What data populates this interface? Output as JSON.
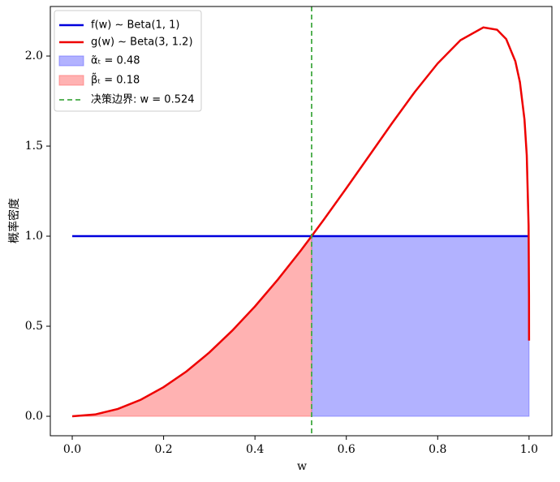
{
  "chart_data": {
    "type": "line",
    "xlabel": "w",
    "ylabel": "概率密度",
    "xlim": [
      -0.048,
      1.05
    ],
    "ylim": [
      -0.108,
      2.275
    ],
    "xticks": [
      {
        "value": 0,
        "label": "0.0"
      },
      {
        "value": 0.2,
        "label": "0.2"
      },
      {
        "value": 0.4,
        "label": "0.4"
      },
      {
        "value": 0.6,
        "label": "0.6"
      },
      {
        "value": 0.8,
        "label": "0.8"
      },
      {
        "value": 1,
        "label": "1.0"
      }
    ],
    "yticks": [
      {
        "value": 0,
        "label": "0.0"
      },
      {
        "value": 0.5,
        "label": "0.5"
      },
      {
        "value": 1,
        "label": "1.0"
      },
      {
        "value": 1.5,
        "label": "1.5"
      },
      {
        "value": 2,
        "label": "2.0"
      }
    ],
    "legend": "upper left",
    "series": [
      {
        "name": "f(w) ∼ Beta(1, 1)",
        "color": "#0000dd",
        "x": [
          0,
          1
        ],
        "values": [
          1,
          1
        ]
      },
      {
        "name": "g(w) ∼ Beta(3, 1.2)",
        "color": "#ee0000",
        "x": [
          0,
          0.05,
          0.1,
          0.15,
          0.2,
          0.25,
          0.3,
          0.35,
          0.4,
          0.45,
          0.5,
          0.524,
          0.55,
          0.6,
          0.65,
          0.7,
          0.75,
          0.8,
          0.85,
          0.9,
          0.93,
          0.95,
          0.97,
          0.98,
          0.99,
          0.995,
          0.999,
          0.9999,
          1
        ],
        "values": [
          0,
          0.01,
          0.041,
          0.092,
          0.162,
          0.249,
          0.354,
          0.475,
          0.61,
          0.759,
          0.919,
          1,
          1.089,
          1.266,
          1.446,
          1.627,
          1.801,
          1.959,
          2.088,
          2.159,
          2.146,
          2.094,
          1.971,
          1.855,
          1.648,
          1.449,
          1.059,
          0.669,
          0.42
        ]
      }
    ],
    "areas": [
      {
        "name": "α̃ₜ = 0.48",
        "color": "#6666ff"
      },
      {
        "name": "β̃ₜ = 0.18",
        "color": "#ff6666"
      }
    ],
    "boundary": {
      "name": "决策边界: w = 0.524",
      "value": 0.524,
      "color": "#44aa44"
    }
  }
}
